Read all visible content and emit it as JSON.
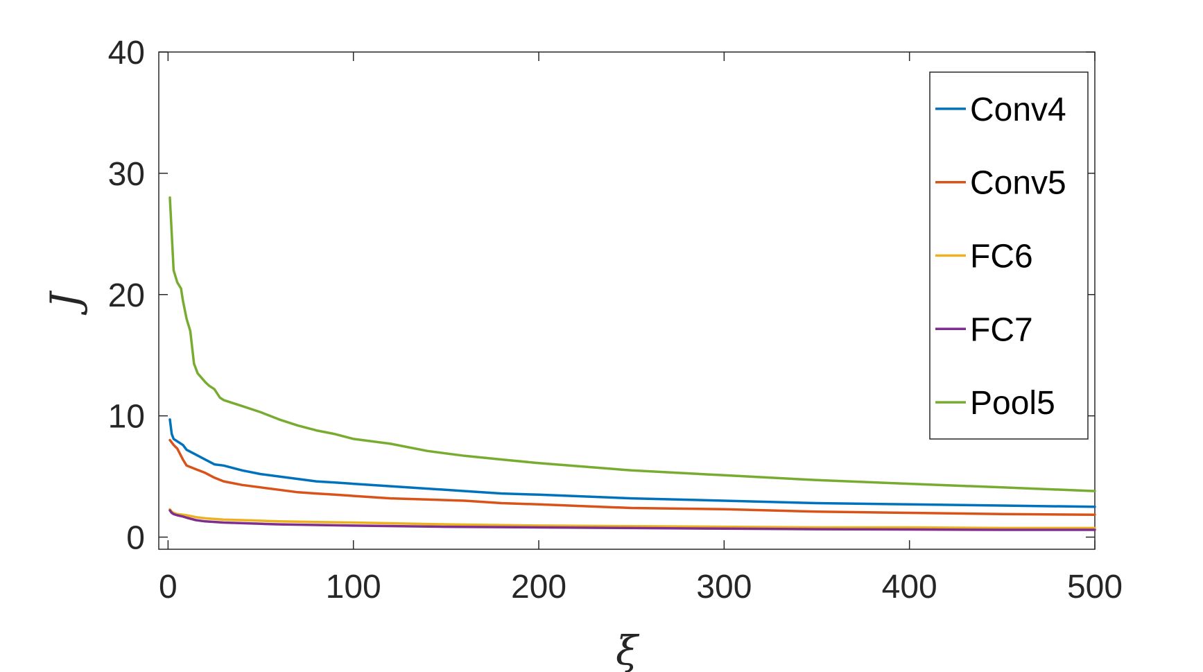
{
  "chart_data": {
    "type": "line",
    "title": "",
    "xlabel": "ξ",
    "ylabel": "J",
    "xlim": [
      -5,
      500
    ],
    "ylim": [
      -1,
      40
    ],
    "xticks": [
      0,
      100,
      200,
      300,
      400,
      500
    ],
    "yticks": [
      0,
      10,
      20,
      30,
      40
    ],
    "grid": false,
    "legend_position": "top-right",
    "series": [
      {
        "name": "Conv4",
        "color": "#0072BD",
        "x": [
          1,
          2,
          3,
          5,
          8,
          10,
          15,
          20,
          25,
          30,
          40,
          50,
          60,
          70,
          80,
          90,
          100,
          120,
          140,
          160,
          180,
          200,
          250,
          300,
          350,
          400,
          450,
          500
        ],
        "y": [
          9.7,
          8.5,
          8.1,
          7.9,
          7.6,
          7.2,
          6.8,
          6.4,
          6.0,
          5.9,
          5.5,
          5.2,
          5.0,
          4.8,
          4.6,
          4.5,
          4.4,
          4.2,
          4.0,
          3.8,
          3.6,
          3.5,
          3.2,
          3.0,
          2.8,
          2.7,
          2.6,
          2.5
        ]
      },
      {
        "name": "Conv5",
        "color": "#D95319",
        "x": [
          1,
          2,
          3,
          5,
          8,
          10,
          15,
          20,
          25,
          30,
          40,
          50,
          60,
          70,
          80,
          90,
          100,
          120,
          140,
          160,
          180,
          200,
          250,
          300,
          350,
          400,
          450,
          500
        ],
        "y": [
          8.0,
          7.8,
          7.6,
          7.3,
          6.4,
          5.9,
          5.6,
          5.3,
          4.9,
          4.6,
          4.3,
          4.1,
          3.9,
          3.7,
          3.6,
          3.5,
          3.4,
          3.2,
          3.1,
          3.0,
          2.8,
          2.7,
          2.4,
          2.3,
          2.1,
          2.0,
          1.9,
          1.85
        ]
      },
      {
        "name": "FC6",
        "color": "#EDB120",
        "x": [
          1,
          2,
          3,
          5,
          8,
          10,
          15,
          20,
          30,
          40,
          50,
          60,
          80,
          100,
          150,
          200,
          250,
          300,
          350,
          400,
          450,
          500
        ],
        "y": [
          2.3,
          2.1,
          2.0,
          1.9,
          1.85,
          1.8,
          1.65,
          1.55,
          1.45,
          1.4,
          1.35,
          1.3,
          1.25,
          1.2,
          1.05,
          0.95,
          0.9,
          0.85,
          0.8,
          0.8,
          0.75,
          0.75
        ]
      },
      {
        "name": "FC7",
        "color": "#7E2F8E",
        "x": [
          1,
          2,
          3,
          5,
          8,
          10,
          15,
          20,
          30,
          40,
          50,
          60,
          80,
          100,
          150,
          200,
          250,
          300,
          350,
          400,
          450,
          500
        ],
        "y": [
          2.2,
          2.0,
          1.9,
          1.8,
          1.7,
          1.6,
          1.4,
          1.3,
          1.2,
          1.15,
          1.1,
          1.05,
          1.0,
          0.95,
          0.85,
          0.8,
          0.75,
          0.7,
          0.65,
          0.63,
          0.6,
          0.6
        ]
      },
      {
        "name": "Pool5",
        "color": "#77AC30",
        "x": [
          1,
          2,
          3,
          5,
          7,
          8,
          10,
          12,
          14,
          16,
          20,
          22,
          25,
          28,
          30,
          40,
          50,
          60,
          70,
          80,
          90,
          100,
          120,
          140,
          160,
          180,
          200,
          250,
          300,
          350,
          400,
          450,
          500
        ],
        "y": [
          28.0,
          25.0,
          22.0,
          21.0,
          20.5,
          19.5,
          18.0,
          17.0,
          14.3,
          13.5,
          12.8,
          12.5,
          12.2,
          11.5,
          11.3,
          10.8,
          10.3,
          9.7,
          9.2,
          8.8,
          8.5,
          8.1,
          7.7,
          7.1,
          6.7,
          6.4,
          6.1,
          5.5,
          5.1,
          4.7,
          4.4,
          4.1,
          3.8
        ]
      }
    ]
  }
}
